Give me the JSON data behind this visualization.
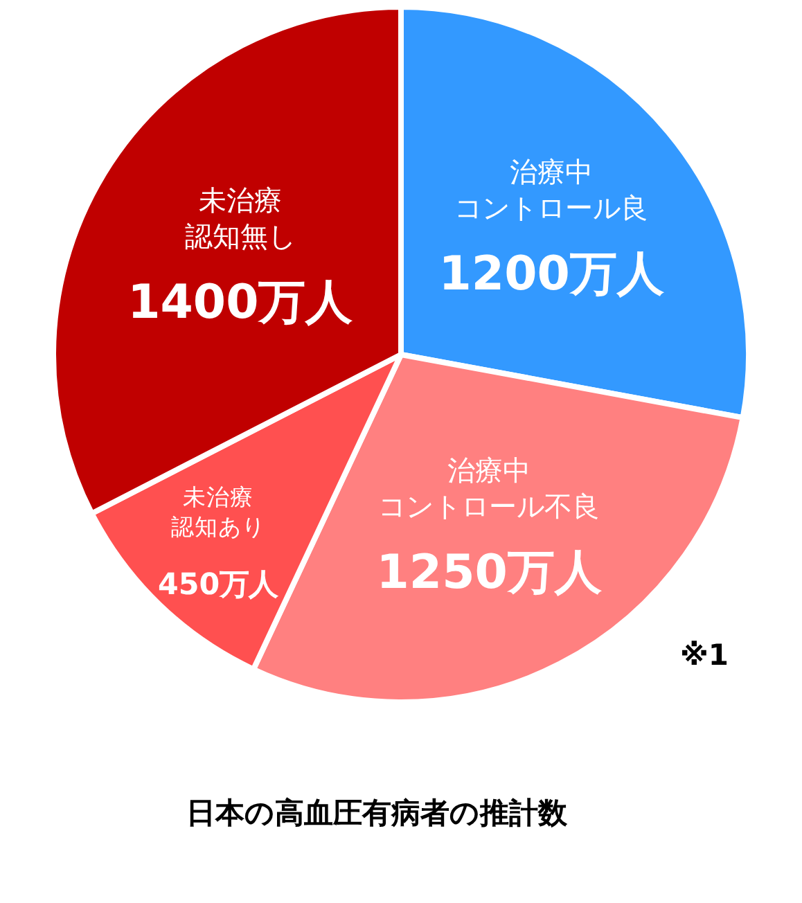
{
  "chart_data": {
    "type": "pie",
    "title": "日本の高血圧有病者の推計数",
    "categories": [
      "治療中コントロール良",
      "治療中コントロール不良",
      "未治療認知あり",
      "未治療認知無し"
    ],
    "values": [
      1200,
      1250,
      450,
      1400
    ],
    "value_labels": [
      "1200万人",
      "1250万人",
      "450万人",
      "1400万人"
    ],
    "colors": [
      "#3399ff",
      "#ff8080",
      "#ff5050",
      "#c00000"
    ],
    "annotations": [
      "※1"
    ],
    "legend": false
  }
}
